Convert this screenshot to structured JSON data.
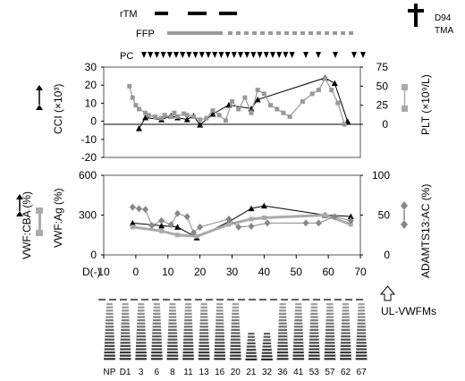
{
  "header": {
    "rtm_label": "rTM",
    "ffp_label": "FFP",
    "pc_label": "PC",
    "death_label": "D94",
    "cause_label": "TMA"
  },
  "chart_data": [
    {
      "type": "line",
      "title": "",
      "ylabel": "CCI (×10³)",
      "y2label": "PLT (×10⁹/L)",
      "ylim": [
        -20,
        30
      ],
      "yticks": [
        -20,
        -10,
        0,
        10,
        20,
        30
      ],
      "y2lim": [
        0,
        75
      ],
      "y2ticks": [
        0,
        25,
        50,
        75
      ],
      "xlim": [
        -10,
        70
      ],
      "series": [
        {
          "axis": "left",
          "marker": "triangle",
          "color": "#000000",
          "x": [
            1,
            3,
            8,
            11,
            13,
            16,
            18,
            20,
            24,
            29,
            36,
            38,
            59,
            62,
            66
          ],
          "y": [
            -4,
            2,
            1,
            3,
            2,
            1,
            3,
            -2,
            4,
            9,
            7,
            12,
            24,
            21,
            0
          ]
        },
        {
          "axis": "right",
          "marker": "square",
          "color": "#999999",
          "x": [
            -2,
            -1,
            0,
            1,
            3,
            4,
            6,
            8,
            9,
            11,
            12,
            13,
            15,
            16,
            18,
            20,
            22,
            24,
            26,
            28,
            30,
            32,
            34,
            36,
            38,
            40,
            42,
            44,
            46,
            48,
            52,
            55,
            57,
            59,
            61,
            63,
            65
          ],
          "y": [
            50,
            35,
            25,
            20,
            15,
            12,
            10,
            8,
            12,
            10,
            15,
            10,
            14,
            12,
            10,
            6,
            8,
            18,
            12,
            5,
            30,
            20,
            35,
            15,
            45,
            40,
            25,
            20,
            15,
            10,
            30,
            40,
            45,
            60,
            45,
            28,
            0
          ]
        }
      ]
    },
    {
      "type": "line",
      "title": "",
      "ylabel": "VWF:Ag (%)",
      "ylabel2": "VWF:CBA (%)",
      "y2label": "ADAMTS13:AC (%)",
      "ylim": [
        0,
        600
      ],
      "yticks": [
        0,
        300,
        600
      ],
      "y2lim": [
        0,
        100
      ],
      "y2ticks": [
        0,
        50,
        100
      ],
      "xlim": [
        -10,
        70
      ],
      "xlabel_prefix": "D(-)",
      "xticks": [
        -10,
        0,
        10,
        20,
        30,
        40,
        50,
        60,
        70
      ],
      "xticklabels": [
        "10",
        "0",
        "10",
        "20",
        "30",
        "40",
        "50",
        "60",
        "70"
      ],
      "series": [
        {
          "axis": "left",
          "marker": "triangle",
          "color": "#000000",
          "x": [
            -1,
            8,
            13,
            19,
            29,
            36,
            40,
            59,
            67
          ],
          "y": [
            240,
            220,
            210,
            130,
            250,
            350,
            370,
            300,
            290
          ]
        },
        {
          "axis": "left",
          "marker": "square",
          "color": "#aaaaaa",
          "x": [
            -1,
            8,
            13,
            19,
            29,
            36,
            40,
            59,
            67
          ],
          "y": [
            210,
            180,
            150,
            140,
            230,
            270,
            280,
            300,
            230
          ]
        },
        {
          "axis": "right",
          "marker": "diamond",
          "color": "#888888",
          "x": [
            -1,
            1,
            3,
            5,
            8,
            11,
            13,
            16,
            18,
            20,
            29,
            32,
            36,
            41,
            53,
            57,
            62,
            67
          ],
          "y": [
            60,
            58,
            57,
            37,
            43,
            38,
            52,
            48,
            28,
            35,
            45,
            35,
            36,
            40,
            40,
            40,
            48,
            43
          ]
        }
      ]
    }
  ],
  "blot": {
    "lane_labels": [
      "NP",
      "D1",
      "3",
      "6",
      "8",
      "11",
      "13",
      "16",
      "20",
      "21",
      "32",
      "36",
      "41",
      "53",
      "57",
      "62",
      "67"
    ],
    "ul_label": "UL-VWFMs"
  }
}
